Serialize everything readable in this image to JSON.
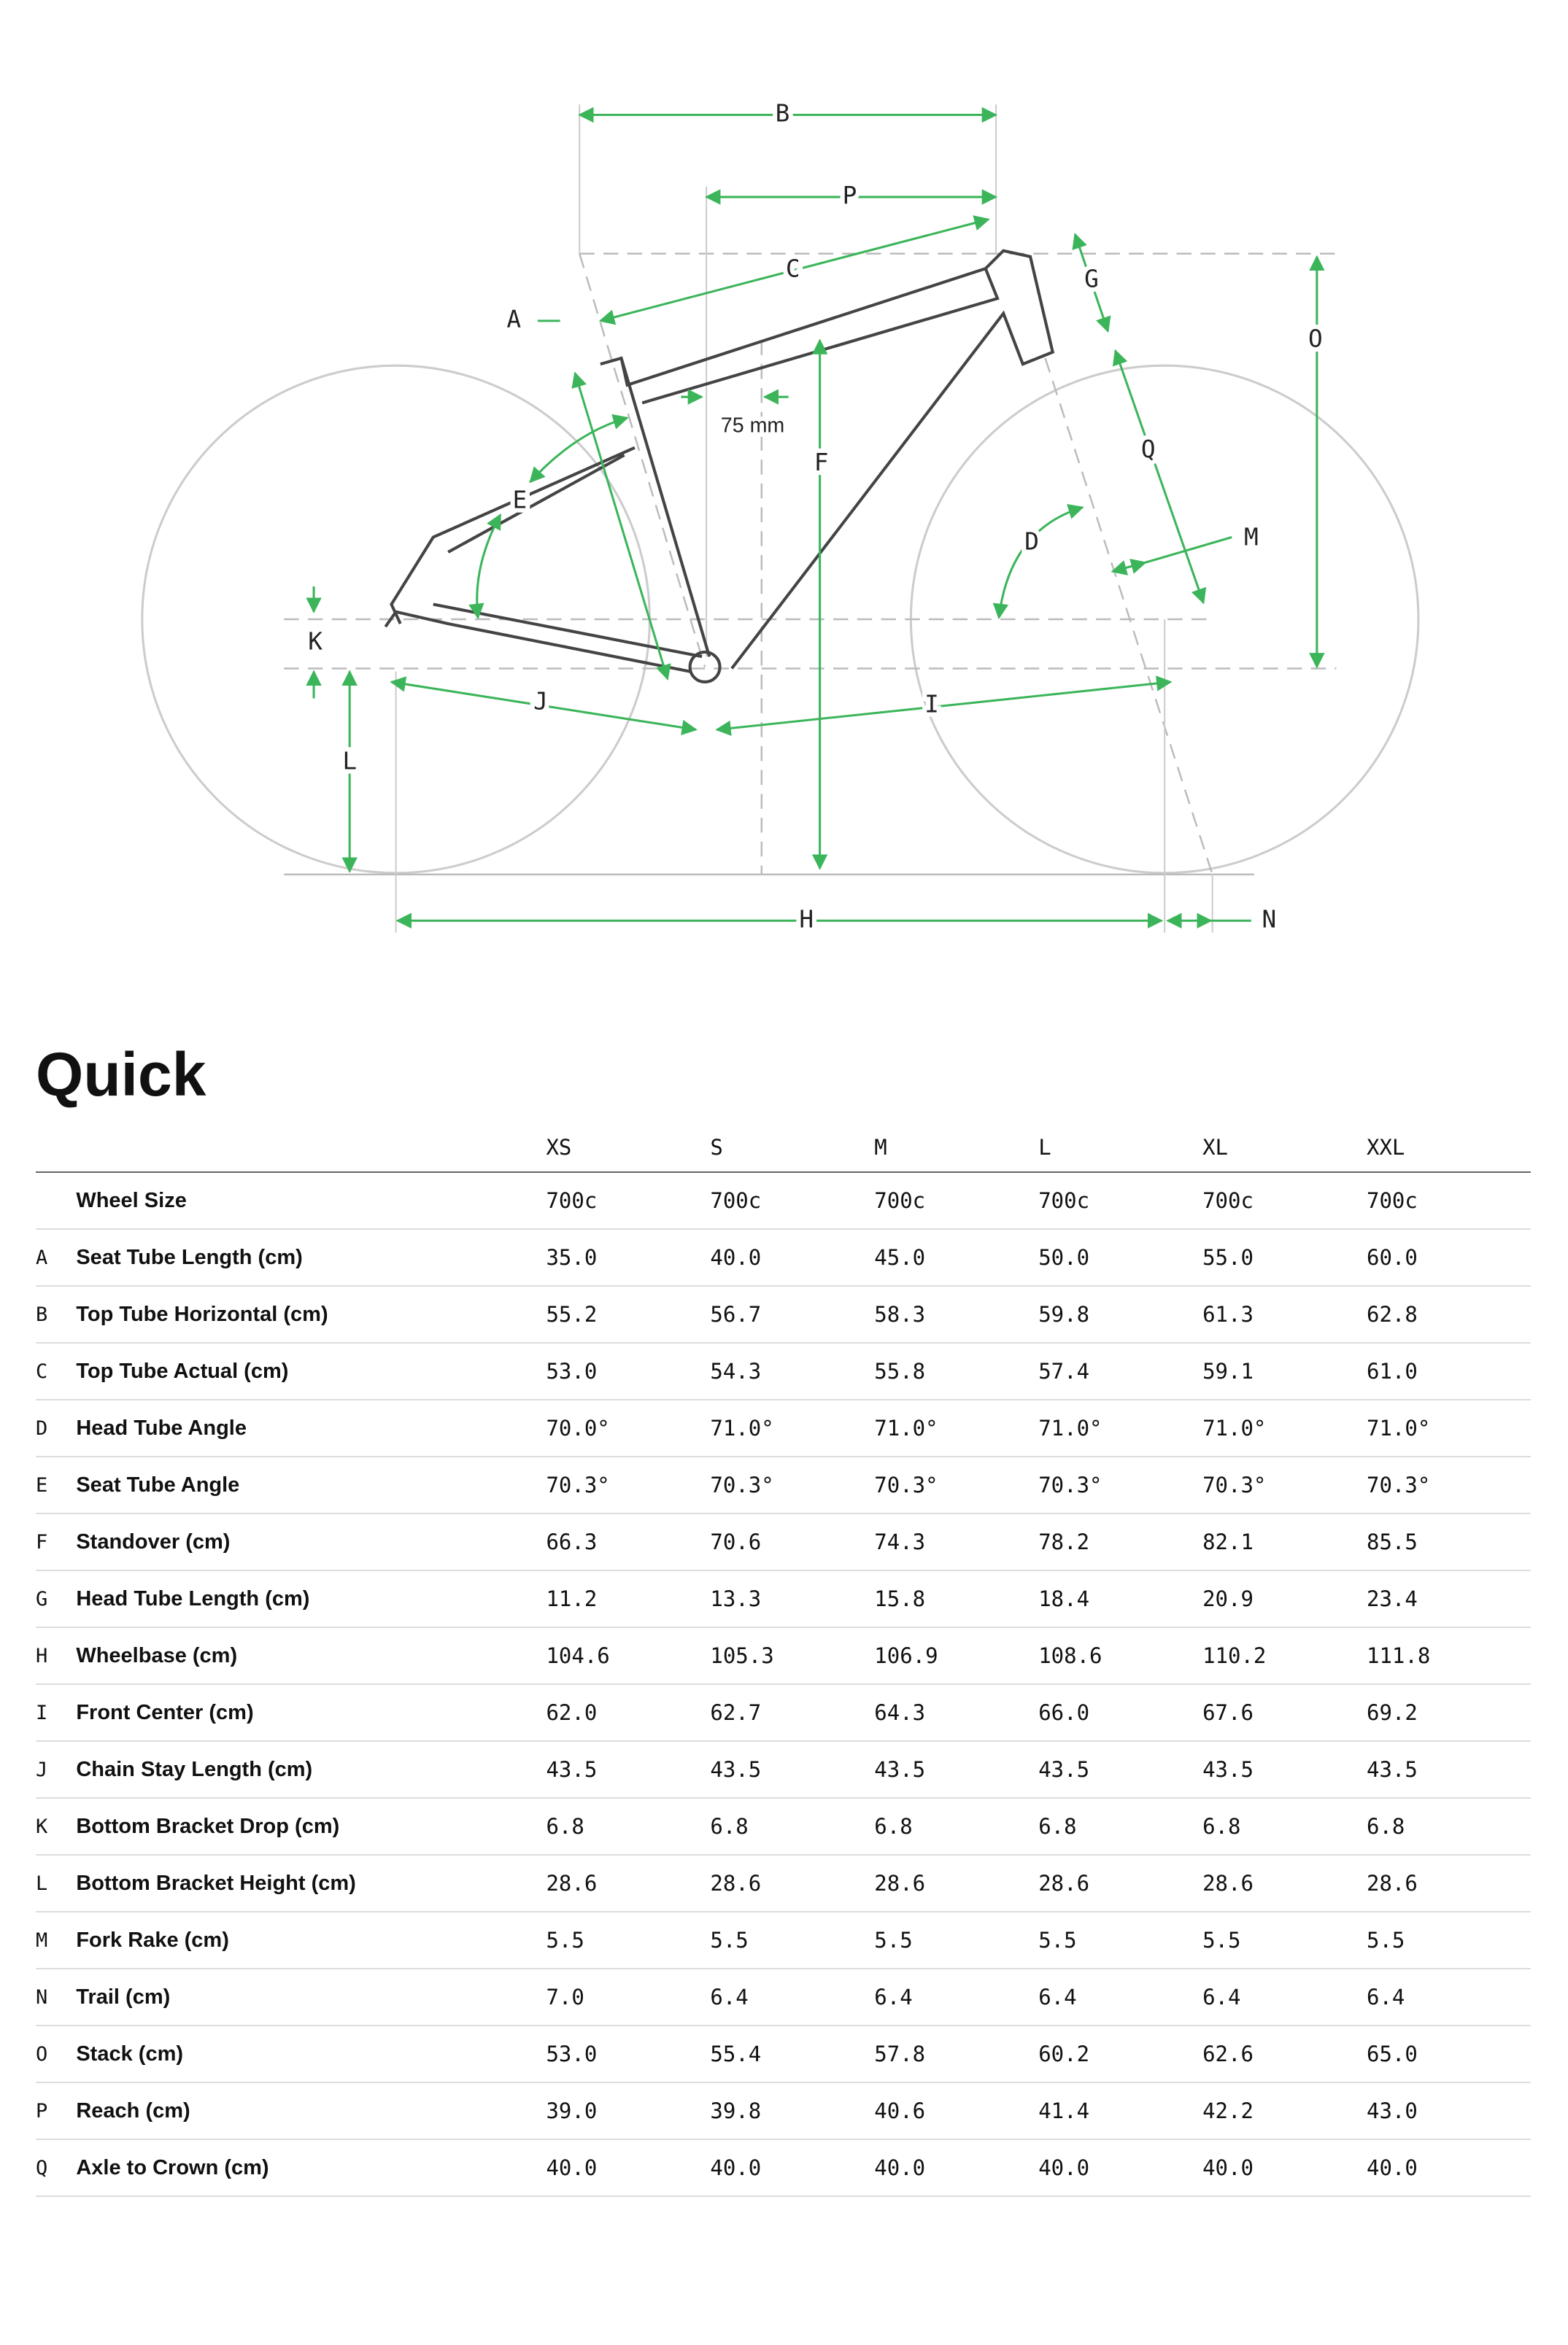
{
  "diagram": {
    "labels": [
      "A",
      "B",
      "C",
      "D",
      "E",
      "F",
      "G",
      "H",
      "I",
      "J",
      "K",
      "L",
      "M",
      "N",
      "O",
      "P",
      "Q"
    ],
    "offset_label": "75 mm"
  },
  "title": "Quick",
  "table": {
    "columns": [
      "XS",
      "S",
      "M",
      "L",
      "XL",
      "XXL"
    ],
    "rows": [
      {
        "name": "Wheel Size",
        "values": [
          "700c",
          "700c",
          "700c",
          "700c",
          "700c",
          "700c"
        ]
      },
      {
        "letter": "A",
        "name": "Seat Tube Length (cm)",
        "values": [
          "35.0",
          "40.0",
          "45.0",
          "50.0",
          "55.0",
          "60.0"
        ]
      },
      {
        "letter": "B",
        "name": "Top Tube Horizontal (cm)",
        "values": [
          "55.2",
          "56.7",
          "58.3",
          "59.8",
          "61.3",
          "62.8"
        ]
      },
      {
        "letter": "C",
        "name": "Top Tube Actual (cm)",
        "values": [
          "53.0",
          "54.3",
          "55.8",
          "57.4",
          "59.1",
          "61.0"
        ]
      },
      {
        "letter": "D",
        "name": "Head Tube Angle",
        "values": [
          "70.0°",
          "71.0°",
          "71.0°",
          "71.0°",
          "71.0°",
          "71.0°"
        ]
      },
      {
        "letter": "E",
        "name": "Seat Tube Angle",
        "values": [
          "70.3°",
          "70.3°",
          "70.3°",
          "70.3°",
          "70.3°",
          "70.3°"
        ]
      },
      {
        "letter": "F",
        "name": "Standover (cm)",
        "values": [
          "66.3",
          "70.6",
          "74.3",
          "78.2",
          "82.1",
          "85.5"
        ]
      },
      {
        "letter": "G",
        "name": "Head Tube Length (cm)",
        "values": [
          "11.2",
          "13.3",
          "15.8",
          "18.4",
          "20.9",
          "23.4"
        ]
      },
      {
        "letter": "H",
        "name": "Wheelbase (cm)",
        "values": [
          "104.6",
          "105.3",
          "106.9",
          "108.6",
          "110.2",
          "111.8"
        ]
      },
      {
        "letter": "I",
        "name": "Front Center (cm)",
        "values": [
          "62.0",
          "62.7",
          "64.3",
          "66.0",
          "67.6",
          "69.2"
        ]
      },
      {
        "letter": "J",
        "name": "Chain Stay Length (cm)",
        "values": [
          "43.5",
          "43.5",
          "43.5",
          "43.5",
          "43.5",
          "43.5"
        ]
      },
      {
        "letter": "K",
        "name": "Bottom Bracket Drop (cm)",
        "values": [
          "6.8",
          "6.8",
          "6.8",
          "6.8",
          "6.8",
          "6.8"
        ]
      },
      {
        "letter": "L",
        "name": "Bottom Bracket Height (cm)",
        "values": [
          "28.6",
          "28.6",
          "28.6",
          "28.6",
          "28.6",
          "28.6"
        ]
      },
      {
        "letter": "M",
        "name": "Fork Rake (cm)",
        "values": [
          "5.5",
          "5.5",
          "5.5",
          "5.5",
          "5.5",
          "5.5"
        ]
      },
      {
        "letter": "N",
        "name": "Trail (cm)",
        "values": [
          "7.0",
          "6.4",
          "6.4",
          "6.4",
          "6.4",
          "6.4"
        ]
      },
      {
        "letter": "O",
        "name": "Stack (cm)",
        "values": [
          "53.0",
          "55.4",
          "57.8",
          "60.2",
          "62.6",
          "65.0"
        ]
      },
      {
        "letter": "P",
        "name": "Reach (cm)",
        "values": [
          "39.0",
          "39.8",
          "40.6",
          "41.4",
          "42.2",
          "43.0"
        ]
      },
      {
        "letter": "Q",
        "name": "Axle to Crown (cm)",
        "values": [
          "40.0",
          "40.0",
          "40.0",
          "40.0",
          "40.0",
          "40.0"
        ]
      }
    ]
  }
}
